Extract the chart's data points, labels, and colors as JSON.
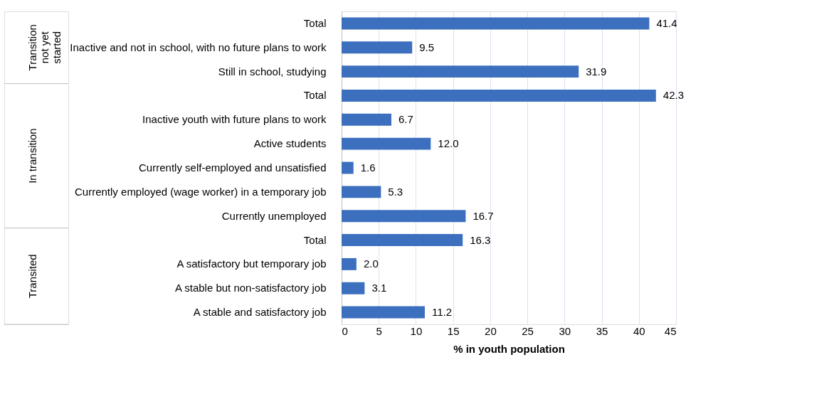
{
  "chart_data": {
    "type": "bar",
    "orientation": "horizontal",
    "xlabel": "% in youth population",
    "categories": [
      "Total",
      "Inactive and not in school, with no future plans to work",
      "Still in school, studying",
      "Total",
      "Inactive youth with future plans to work",
      "Active students",
      "Currently self-employed and unsatisfied",
      "Currently employed (wage worker) in a temporary job",
      "Currently unemployed",
      "Total",
      "A satisfactory but temporary job",
      "A stable but non-satisfactory job",
      "A stable and satisfactory job"
    ],
    "values": [
      41.4,
      9.5,
      31.9,
      42.3,
      6.7,
      12.0,
      1.6,
      5.3,
      16.7,
      16.3,
      2.0,
      3.1,
      11.2
    ],
    "color": "#3d6fbf",
    "xlim": [
      0,
      45
    ],
    "xticks": [
      0,
      5,
      10,
      15,
      20,
      25,
      30,
      35,
      40,
      45
    ],
    "grid": "x",
    "value_labels": [
      "41.4",
      "9.5",
      "31.9",
      "42.3",
      "6.7",
      "12.0",
      "1.6",
      "5.3",
      "16.7",
      "16.3",
      "2.0",
      "3.1",
      "11.2"
    ],
    "annotations": [
      "Transition\nnot yet\nstarted",
      "In transition",
      "Transited"
    ]
  }
}
